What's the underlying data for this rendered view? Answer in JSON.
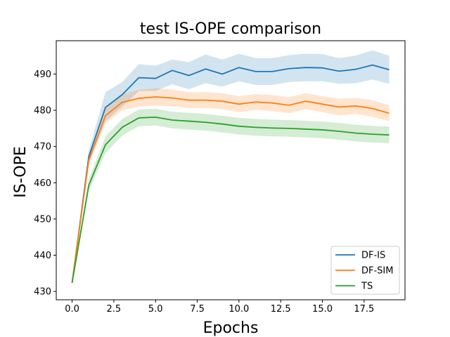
{
  "chart_data": {
    "type": "line",
    "title": "test IS-OPE comparison",
    "xlabel": "Epochs",
    "ylabel": "IS-OPE",
    "xlim": [
      -0.95,
      19.95
    ],
    "ylim": [
      427.7,
      499.2
    ],
    "xticks": [
      0.0,
      2.5,
      5.0,
      7.5,
      10.0,
      12.5,
      15.0,
      17.5
    ],
    "xtick_labels": [
      "0.0",
      "2.5",
      "5.0",
      "7.5",
      "10.0",
      "12.5",
      "15.0",
      "17.5"
    ],
    "yticks": [
      430,
      440,
      450,
      460,
      470,
      480,
      490
    ],
    "ytick_labels": [
      "430",
      "440",
      "450",
      "460",
      "470",
      "480",
      "490"
    ],
    "grid": false,
    "legend_position": "lower-right",
    "x": [
      0,
      1,
      2,
      3,
      4,
      5,
      6,
      7,
      8,
      9,
      10,
      11,
      12,
      13,
      14,
      15,
      16,
      17,
      18,
      19
    ],
    "series": [
      {
        "name": "DF-IS",
        "color": "#1f77b4",
        "values": [
          432.4,
          467.2,
          480.8,
          484.3,
          489.0,
          488.8,
          491.0,
          489.6,
          491.4,
          490.0,
          491.8,
          490.7,
          490.7,
          491.5,
          491.8,
          491.7,
          490.8,
          491.3,
          492.5,
          491.2
        ],
        "lower": [
          432.0,
          465.5,
          477.0,
          481.0,
          485.3,
          485.3,
          487.2,
          485.8,
          487.5,
          486.5,
          488.0,
          487.0,
          487.0,
          487.8,
          488.0,
          488.0,
          487.3,
          487.5,
          488.5,
          487.3
        ],
        "upper": [
          432.8,
          469.0,
          485.0,
          487.8,
          492.7,
          492.3,
          494.0,
          493.3,
          495.4,
          494.0,
          495.6,
          494.4,
          494.4,
          495.2,
          495.6,
          495.5,
          494.4,
          495.1,
          496.5,
          495.1
        ]
      },
      {
        "name": "DF-SIM",
        "color": "#ff7f0e",
        "values": [
          432.4,
          466.3,
          478.5,
          482.2,
          483.3,
          483.7,
          483.4,
          482.8,
          482.8,
          482.5,
          481.7,
          482.3,
          482.0,
          481.4,
          482.5,
          481.7,
          480.9,
          481.2,
          480.5,
          479.2
        ],
        "lower": [
          432.0,
          464.7,
          476.3,
          480.0,
          481.0,
          481.3,
          481.1,
          480.6,
          480.6,
          480.3,
          479.5,
          480.1,
          479.8,
          479.2,
          480.3,
          479.5,
          478.6,
          479.0,
          478.2,
          477.0
        ],
        "upper": [
          432.8,
          468.0,
          480.7,
          484.4,
          485.6,
          486.1,
          485.7,
          485.0,
          485.0,
          484.7,
          483.9,
          484.5,
          484.2,
          483.6,
          484.7,
          483.9,
          483.2,
          483.4,
          482.8,
          481.4
        ]
      },
      {
        "name": "TS",
        "color": "#2ca02c",
        "values": [
          432.4,
          459.3,
          470.5,
          475.3,
          477.9,
          478.1,
          477.3,
          477.0,
          476.7,
          476.2,
          475.6,
          475.3,
          475.1,
          475.0,
          474.8,
          474.6,
          474.2,
          473.7,
          473.4,
          473.2
        ],
        "lower": [
          432.0,
          457.7,
          468.2,
          473.0,
          475.6,
          475.8,
          475.0,
          474.7,
          474.4,
          473.9,
          473.3,
          473.0,
          472.8,
          472.7,
          472.5,
          472.3,
          471.9,
          471.4,
          471.1,
          470.9
        ],
        "upper": [
          432.8,
          461.0,
          472.8,
          477.6,
          480.2,
          480.4,
          479.6,
          479.3,
          479.0,
          478.5,
          477.9,
          477.6,
          477.4,
          477.3,
          477.1,
          476.9,
          476.5,
          476.0,
          475.7,
          475.5
        ]
      }
    ]
  }
}
